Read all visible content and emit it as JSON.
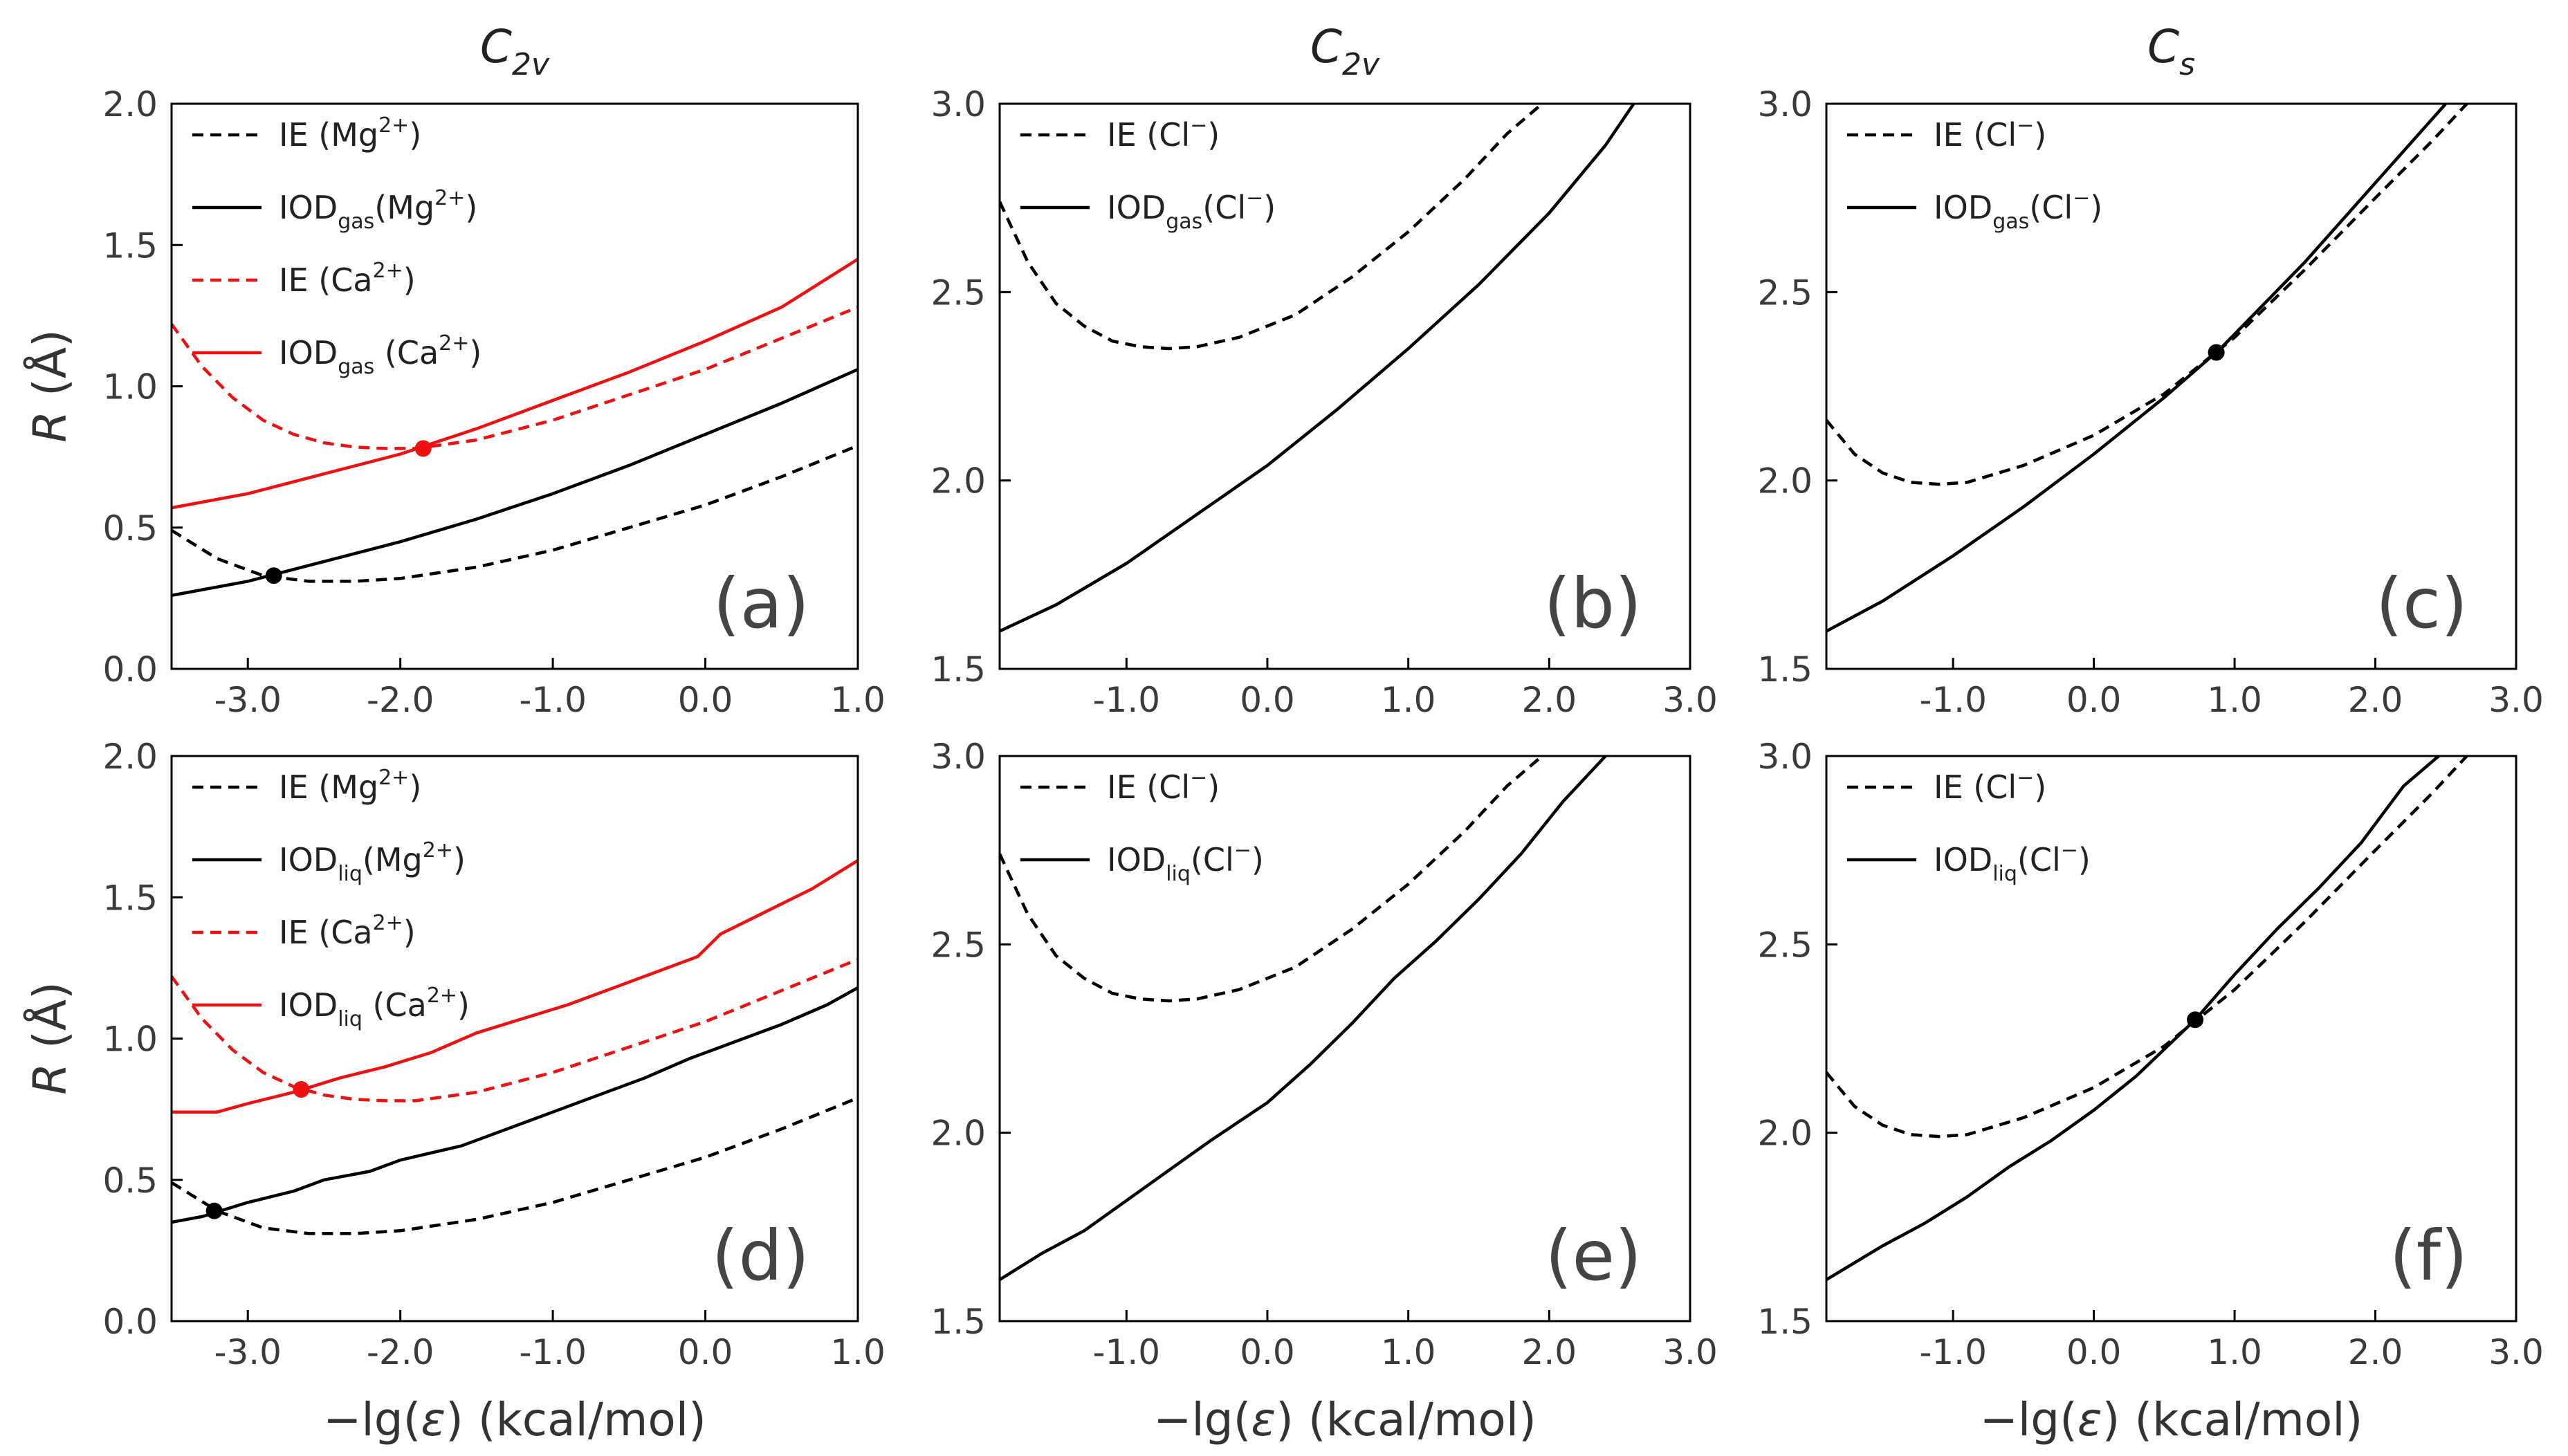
{
  "column_titles": [
    {
      "main": "C",
      "sub": "2v"
    },
    {
      "main": "C",
      "sub": "2v"
    },
    {
      "main": "C",
      "sub": "s"
    }
  ],
  "y_axis_label": {
    "italic": "R",
    "rest": " (Å)"
  },
  "x_axis_label": {
    "prefix": "−lg(",
    "italic": "ε",
    "suffix": ") (kcal/mol)"
  },
  "colors": {
    "black": "#000000",
    "red": "#ee1111"
  },
  "chart_data": [
    {
      "id": "a",
      "type": "line",
      "tag": "(a)",
      "xlim": [
        -3.5,
        1.0
      ],
      "ylim": [
        0.0,
        2.0
      ],
      "xticks": [
        -3.0,
        -2.0,
        -1.0,
        0.0,
        1.0
      ],
      "xtick_labels": [
        "-3.0",
        "-2.0",
        "-1.0",
        "0.0",
        "1.0"
      ],
      "yticks": [
        0.0,
        0.5,
        1.0,
        1.5,
        2.0
      ],
      "ytick_labels": [
        "0.0",
        "0.5",
        "1.0",
        "1.5",
        "2.0"
      ],
      "series": [
        {
          "name": "IE (Mg²⁺)",
          "legend": {
            "base": "IE (Mg",
            "sub": "",
            "sup": "2+",
            "close": ")"
          },
          "color": "#000000",
          "dash": true,
          "x": [
            -3.5,
            -3.2,
            -2.9,
            -2.6,
            -2.3,
            -2.0,
            -1.5,
            -1.0,
            -0.5,
            0.0,
            0.5,
            1.0
          ],
          "y": [
            0.49,
            0.39,
            0.33,
            0.31,
            0.31,
            0.32,
            0.36,
            0.42,
            0.5,
            0.58,
            0.68,
            0.79
          ]
        },
        {
          "name": "IODgas(Mg²⁺)",
          "legend": {
            "base": "IOD",
            "sub": "gas",
            "sup": "2+",
            "close": ")",
            "ion": "(Mg"
          },
          "color": "#000000",
          "dash": false,
          "x": [
            -3.5,
            -3.0,
            -2.5,
            -2.0,
            -1.5,
            -1.0,
            -0.5,
            0.0,
            0.5,
            1.0
          ],
          "y": [
            0.26,
            0.31,
            0.38,
            0.45,
            0.53,
            0.62,
            0.72,
            0.83,
            0.94,
            1.06
          ]
        },
        {
          "name": "IE (Ca²⁺)",
          "legend": {
            "base": "IE (Ca",
            "sub": "",
            "sup": "2+",
            "close": ")"
          },
          "color": "#ee1111",
          "dash": true,
          "x": [
            -3.5,
            -3.3,
            -3.1,
            -2.9,
            -2.7,
            -2.5,
            -2.3,
            -2.1,
            -1.9,
            -1.5,
            -1.0,
            -0.5,
            0.0,
            0.5,
            1.0
          ],
          "y": [
            1.22,
            1.07,
            0.96,
            0.88,
            0.83,
            0.8,
            0.785,
            0.78,
            0.78,
            0.81,
            0.88,
            0.97,
            1.06,
            1.17,
            1.28
          ]
        },
        {
          "name": "IODgas (Ca²⁺)",
          "legend": {
            "base": "IOD",
            "sub": "gas",
            "sup": "2+",
            "close": ")",
            "ion": " (Ca"
          },
          "color": "#ee1111",
          "dash": false,
          "x": [
            -3.5,
            -3.0,
            -2.5,
            -2.0,
            -1.5,
            -1.0,
            -0.5,
            0.0,
            0.5,
            1.0
          ],
          "y": [
            0.57,
            0.62,
            0.69,
            0.76,
            0.85,
            0.95,
            1.05,
            1.16,
            1.28,
            1.45
          ]
        }
      ],
      "markers": [
        {
          "x": -2.83,
          "y": 0.33,
          "color": "#000000"
        },
        {
          "x": -1.85,
          "y": 0.78,
          "color": "#ee1111"
        }
      ]
    },
    {
      "id": "b",
      "type": "line",
      "tag": "(b)",
      "xlim": [
        -1.9,
        3.0
      ],
      "ylim": [
        1.5,
        3.0
      ],
      "xticks": [
        -1.0,
        0.0,
        1.0,
        2.0,
        3.0
      ],
      "xtick_labels": [
        "-1.0",
        "0.0",
        "1.0",
        "2.0",
        "3.0"
      ],
      "yticks": [
        1.5,
        2.0,
        2.5,
        3.0
      ],
      "ytick_labels": [
        "1.5",
        "2.0",
        "2.5",
        "3.0"
      ],
      "series": [
        {
          "name": "IE (Cl⁻)",
          "legend": {
            "base": "IE (Cl",
            "sub": "",
            "sup": "−",
            "close": ")"
          },
          "color": "#000000",
          "dash": true,
          "x": [
            -1.9,
            -1.7,
            -1.5,
            -1.3,
            -1.1,
            -0.9,
            -0.7,
            -0.5,
            -0.2,
            0.2,
            0.6,
            1.0,
            1.4,
            1.7,
            1.95
          ],
          "y": [
            2.74,
            2.58,
            2.47,
            2.41,
            2.37,
            2.355,
            2.35,
            2.355,
            2.38,
            2.44,
            2.54,
            2.66,
            2.8,
            2.92,
            3.0
          ]
        },
        {
          "name": "IODgas(Cl⁻)",
          "legend": {
            "base": "IOD",
            "sub": "gas",
            "sup": "−",
            "close": ")",
            "ion": "(Cl"
          },
          "color": "#000000",
          "dash": false,
          "x": [
            -1.9,
            -1.5,
            -1.0,
            -0.5,
            0.0,
            0.5,
            1.0,
            1.5,
            2.0,
            2.4,
            2.6
          ],
          "y": [
            1.6,
            1.67,
            1.78,
            1.91,
            2.04,
            2.19,
            2.35,
            2.52,
            2.71,
            2.89,
            3.0
          ]
        }
      ],
      "markers": []
    },
    {
      "id": "c",
      "type": "line",
      "tag": "(c)",
      "xlim": [
        -1.9,
        3.0
      ],
      "ylim": [
        1.5,
        3.0
      ],
      "xticks": [
        -1.0,
        0.0,
        1.0,
        2.0,
        3.0
      ],
      "xtick_labels": [
        "-1.0",
        "0.0",
        "1.0",
        "2.0",
        "3.0"
      ],
      "yticks": [
        1.5,
        2.0,
        2.5,
        3.0
      ],
      "ytick_labels": [
        "1.5",
        "2.0",
        "2.5",
        "3.0"
      ],
      "series": [
        {
          "name": "IE (Cl⁻)",
          "legend": {
            "base": "IE (Cl",
            "sub": "",
            "sup": "−",
            "close": ")"
          },
          "color": "#000000",
          "dash": true,
          "x": [
            -1.9,
            -1.7,
            -1.5,
            -1.3,
            -1.1,
            -0.9,
            -0.5,
            0.0,
            0.5,
            1.0,
            1.5,
            2.0,
            2.4,
            2.65
          ],
          "y": [
            2.16,
            2.07,
            2.02,
            1.995,
            1.99,
            1.995,
            2.04,
            2.12,
            2.23,
            2.38,
            2.56,
            2.75,
            2.9,
            3.0
          ]
        },
        {
          "name": "IODgas(Cl⁻)",
          "legend": {
            "base": "IOD",
            "sub": "gas",
            "sup": "−",
            "close": ")",
            "ion": "(Cl"
          },
          "color": "#000000",
          "dash": false,
          "x": [
            -1.9,
            -1.5,
            -1.0,
            -0.5,
            0.0,
            0.5,
            0.9,
            1.5,
            2.0,
            2.5
          ],
          "y": [
            1.6,
            1.68,
            1.8,
            1.93,
            2.07,
            2.22,
            2.35,
            2.58,
            2.79,
            3.0
          ]
        }
      ],
      "markers": [
        {
          "x": 0.87,
          "y": 2.34,
          "color": "#000000"
        }
      ]
    },
    {
      "id": "d",
      "type": "line",
      "tag": "(d)",
      "xlim": [
        -3.5,
        1.0
      ],
      "ylim": [
        0.0,
        2.0
      ],
      "xticks": [
        -3.0,
        -2.0,
        -1.0,
        0.0,
        1.0
      ],
      "xtick_labels": [
        "-3.0",
        "-2.0",
        "-1.0",
        "0.0",
        "1.0"
      ],
      "yticks": [
        0.0,
        0.5,
        1.0,
        1.5,
        2.0
      ],
      "ytick_labels": [
        "0.0",
        "0.5",
        "1.0",
        "1.5",
        "2.0"
      ],
      "series": [
        {
          "name": "IE (Mg²⁺)",
          "legend": {
            "base": "IE (Mg",
            "sub": "",
            "sup": "2+",
            "close": ")"
          },
          "color": "#000000",
          "dash": true,
          "x": [
            -3.5,
            -3.2,
            -2.9,
            -2.6,
            -2.3,
            -2.0,
            -1.5,
            -1.0,
            -0.5,
            0.0,
            0.5,
            1.0
          ],
          "y": [
            0.49,
            0.39,
            0.33,
            0.31,
            0.31,
            0.32,
            0.36,
            0.42,
            0.5,
            0.58,
            0.68,
            0.79
          ]
        },
        {
          "name": "IODliq(Mg²⁺)",
          "legend": {
            "base": "IOD",
            "sub": "liq",
            "sup": "2+",
            "close": ")",
            "ion": "(Mg"
          },
          "color": "#000000",
          "dash": false,
          "x": [
            -3.5,
            -3.3,
            -3.0,
            -2.7,
            -2.5,
            -2.2,
            -2.0,
            -1.6,
            -1.3,
            -1.0,
            -0.7,
            -0.4,
            -0.1,
            0.2,
            0.5,
            0.8,
            1.0
          ],
          "y": [
            0.35,
            0.37,
            0.42,
            0.46,
            0.5,
            0.53,
            0.57,
            0.62,
            0.68,
            0.74,
            0.8,
            0.86,
            0.93,
            0.99,
            1.05,
            1.12,
            1.18
          ]
        },
        {
          "name": "IE (Ca²⁺)",
          "legend": {
            "base": "IE (Ca",
            "sub": "",
            "sup": "2+",
            "close": ")"
          },
          "color": "#ee1111",
          "dash": true,
          "x": [
            -3.5,
            -3.3,
            -3.1,
            -2.9,
            -2.7,
            -2.5,
            -2.3,
            -2.1,
            -1.9,
            -1.5,
            -1.0,
            -0.5,
            0.0,
            0.5,
            1.0
          ],
          "y": [
            1.22,
            1.07,
            0.96,
            0.88,
            0.83,
            0.8,
            0.785,
            0.78,
            0.78,
            0.81,
            0.88,
            0.97,
            1.06,
            1.17,
            1.28
          ]
        },
        {
          "name": "IODliq (Ca²⁺)",
          "legend": {
            "base": "IOD",
            "sub": "liq",
            "sup": "2+",
            "close": ")",
            "ion": " (Ca"
          },
          "color": "#ee1111",
          "dash": false,
          "x": [
            -3.5,
            -3.2,
            -3.0,
            -2.7,
            -2.4,
            -2.1,
            -1.8,
            -1.5,
            -1.2,
            -0.9,
            -0.6,
            -0.3,
            -0.05,
            0.1,
            0.4,
            0.7,
            1.0
          ],
          "y": [
            0.74,
            0.74,
            0.77,
            0.81,
            0.86,
            0.9,
            0.95,
            1.02,
            1.07,
            1.12,
            1.18,
            1.24,
            1.29,
            1.37,
            1.45,
            1.53,
            1.63
          ]
        }
      ],
      "markers": [
        {
          "x": -3.22,
          "y": 0.39,
          "color": "#000000"
        },
        {
          "x": -2.65,
          "y": 0.82,
          "color": "#ee1111"
        }
      ]
    },
    {
      "id": "e",
      "type": "line",
      "tag": "(e)",
      "xlim": [
        -1.9,
        3.0
      ],
      "ylim": [
        1.5,
        3.0
      ],
      "xticks": [
        -1.0,
        0.0,
        1.0,
        2.0,
        3.0
      ],
      "xtick_labels": [
        "-1.0",
        "0.0",
        "1.0",
        "2.0",
        "3.0"
      ],
      "yticks": [
        1.5,
        2.0,
        2.5,
        3.0
      ],
      "ytick_labels": [
        "1.5",
        "2.0",
        "2.5",
        "3.0"
      ],
      "series": [
        {
          "name": "IE (Cl⁻)",
          "legend": {
            "base": "IE (Cl",
            "sub": "",
            "sup": "−",
            "close": ")"
          },
          "color": "#000000",
          "dash": true,
          "x": [
            -1.9,
            -1.7,
            -1.5,
            -1.3,
            -1.1,
            -0.9,
            -0.7,
            -0.5,
            -0.2,
            0.2,
            0.6,
            1.0,
            1.4,
            1.7,
            1.95
          ],
          "y": [
            2.74,
            2.58,
            2.47,
            2.41,
            2.37,
            2.355,
            2.35,
            2.355,
            2.38,
            2.44,
            2.54,
            2.66,
            2.8,
            2.92,
            3.0
          ]
        },
        {
          "name": "IODliq(Cl⁻)",
          "legend": {
            "base": "IOD",
            "sub": "liq",
            "sup": "−",
            "close": ")",
            "ion": "(Cl"
          },
          "color": "#000000",
          "dash": false,
          "x": [
            -1.9,
            -1.6,
            -1.3,
            -1.0,
            -0.7,
            -0.4,
            0.0,
            0.3,
            0.6,
            0.9,
            1.2,
            1.5,
            1.8,
            2.1,
            2.4
          ],
          "y": [
            1.61,
            1.68,
            1.74,
            1.82,
            1.9,
            1.98,
            2.08,
            2.18,
            2.29,
            2.41,
            2.51,
            2.62,
            2.74,
            2.88,
            3.0
          ]
        }
      ],
      "markers": []
    },
    {
      "id": "f",
      "type": "line",
      "tag": "(f)",
      "xlim": [
        -1.9,
        3.0
      ],
      "ylim": [
        1.5,
        3.0
      ],
      "xticks": [
        -1.0,
        0.0,
        1.0,
        2.0,
        3.0
      ],
      "xtick_labels": [
        "-1.0",
        "0.0",
        "1.0",
        "2.0",
        "3.0"
      ],
      "yticks": [
        1.5,
        2.0,
        2.5,
        3.0
      ],
      "ytick_labels": [
        "1.5",
        "2.0",
        "2.5",
        "3.0"
      ],
      "series": [
        {
          "name": "IE (Cl⁻)",
          "legend": {
            "base": "IE (Cl",
            "sub": "",
            "sup": "−",
            "close": ")"
          },
          "color": "#000000",
          "dash": true,
          "x": [
            -1.9,
            -1.7,
            -1.5,
            -1.3,
            -1.1,
            -0.9,
            -0.5,
            0.0,
            0.5,
            1.0,
            1.5,
            2.0,
            2.4,
            2.65
          ],
          "y": [
            2.16,
            2.07,
            2.02,
            1.995,
            1.99,
            1.995,
            2.04,
            2.12,
            2.23,
            2.38,
            2.56,
            2.75,
            2.9,
            3.0
          ]
        },
        {
          "name": "IODliq(Cl⁻)",
          "legend": {
            "base": "IOD",
            "sub": "liq",
            "sup": "−",
            "close": ")",
            "ion": "(Cl"
          },
          "color": "#000000",
          "dash": false,
          "x": [
            -1.9,
            -1.5,
            -1.2,
            -0.9,
            -0.6,
            -0.3,
            0.0,
            0.3,
            0.72,
            1.0,
            1.3,
            1.6,
            1.9,
            2.2,
            2.45
          ],
          "y": [
            1.61,
            1.7,
            1.76,
            1.83,
            1.91,
            1.98,
            2.06,
            2.15,
            2.3,
            2.42,
            2.54,
            2.65,
            2.77,
            2.92,
            3.0
          ]
        }
      ],
      "markers": [
        {
          "x": 0.72,
          "y": 2.3,
          "color": "#000000"
        }
      ]
    }
  ]
}
